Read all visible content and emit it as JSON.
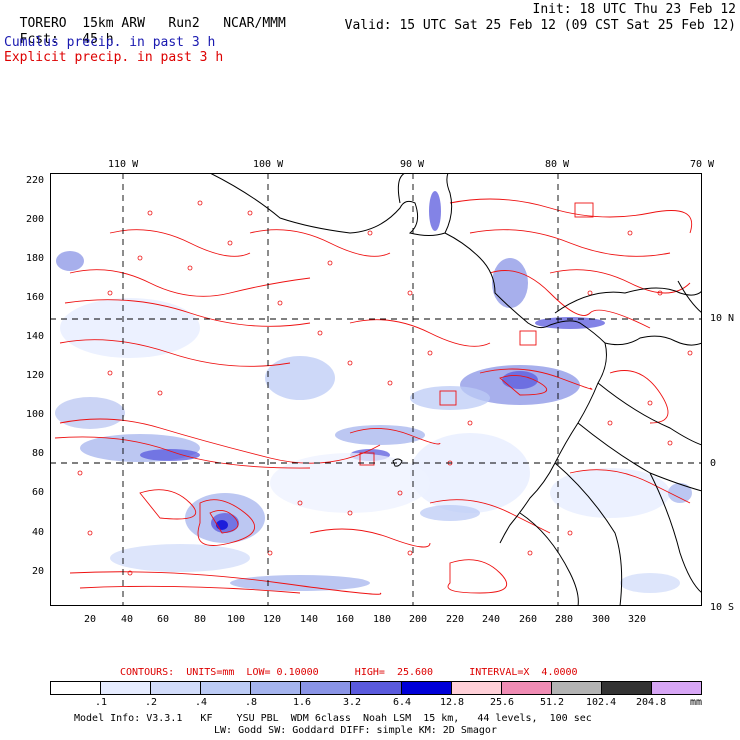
{
  "header": {
    "model": "TORERO",
    "resolution": "15km ARW",
    "run": "Run2",
    "org": "NCAR/MMM",
    "init": "Init: 18 UTC Thu 23 Feb 12",
    "fcst_label": "Fcst:",
    "fcst_value": "45 h",
    "valid": "Valid: 15 UTC Sat 25 Feb 12 (09 CST Sat 25 Feb 12)",
    "legend_cumulus": "Cumulus precip. in past 3 h",
    "legend_explicit": "Explicit precip. in past 3 h"
  },
  "colors": {
    "cumulus": "#1a1ab0",
    "explicit": "#dd0000",
    "contour": "#ee1111",
    "coast": "#000000"
  },
  "map": {
    "top_lon_labels": [
      "110 W",
      "100 W",
      "90 W",
      "80 W",
      "70 W"
    ],
    "right_lat_labels": [
      "10 N",
      "0",
      "10 S"
    ],
    "left_y_ticks": [
      "220",
      "200",
      "180",
      "160",
      "140",
      "120",
      "100",
      "80",
      "60",
      "40",
      "20"
    ],
    "bottom_x_ticks": [
      "20",
      "40",
      "60",
      "80",
      "100",
      "120",
      "140",
      "160",
      "180",
      "200",
      "220",
      "240",
      "260",
      "280",
      "300",
      "320"
    ]
  },
  "contour_info": {
    "text": "CONTOURS:  UNITS=mm  LOW= 0.10000      HIGH=  25.600      INTERVAL=X  4.0000"
  },
  "colorbar": {
    "unit": "mm",
    "labels": [
      ".1",
      ".2",
      ".4",
      ".8",
      "1.6",
      "3.2",
      "6.4",
      "12.8",
      "25.6",
      "51.2",
      "102.4",
      "204.8"
    ],
    "colors": [
      "#ffffff",
      "#e6ecff",
      "#d2dcfa",
      "#bccbf5",
      "#a5b4ee",
      "#8a94e6",
      "#5a5add",
      "#0000d8",
      "#ffd0d8",
      "#f08cb4",
      "#b3b3b3",
      "#333333",
      "#d7a6f5"
    ]
  },
  "footer": {
    "line1": "Model Info: V3.3.1   KF    YSU PBL  WDM 6class  Noah LSM  15 km,   44 levels,  100 sec",
    "line2": "LW: Godd SW: Goddard DIFF: simple KM: 2D Smagor"
  }
}
